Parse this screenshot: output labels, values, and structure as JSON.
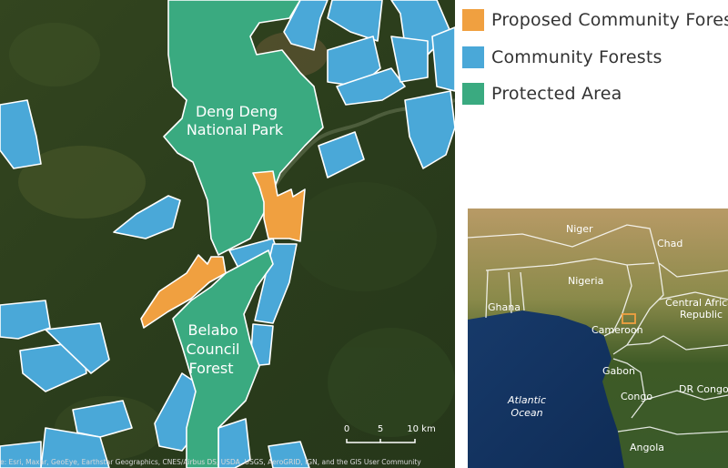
{
  "map": {
    "park_label": [
      "Deng Deng",
      "National Park"
    ],
    "council_label": [
      "Belabo",
      "Council",
      "Forest"
    ],
    "scale_ticks": [
      "0",
      "5",
      "10 km"
    ],
    "attribution": "e: Esri, Maxar, GeoEye, Earthstar Geographics, CNES/Airbus DS, USDA, USGS, AeroGRID, IGN, and the GIS User Community"
  },
  "legend": {
    "items": [
      {
        "label": "Proposed Community Fores",
        "color": "#f0a040"
      },
      {
        "label": "Community Forests",
        "color": "#4aa8d8"
      },
      {
        "label": "Protected Area",
        "color": "#3aaa80"
      }
    ]
  },
  "inset": {
    "labels": {
      "niger": "Niger",
      "chad": "Chad",
      "nigeria": "Nigeria",
      "ghana": "Ghana",
      "car": [
        "Central Africa",
        "Republic"
      ],
      "cameroon": "Cameroon",
      "gabon": "Gabon",
      "congo": "Congo",
      "drc": "DR Congo",
      "ocean": [
        "Atlantic",
        "Ocean"
      ],
      "angola": "Angola"
    },
    "highlight_color": "#f0a040"
  }
}
